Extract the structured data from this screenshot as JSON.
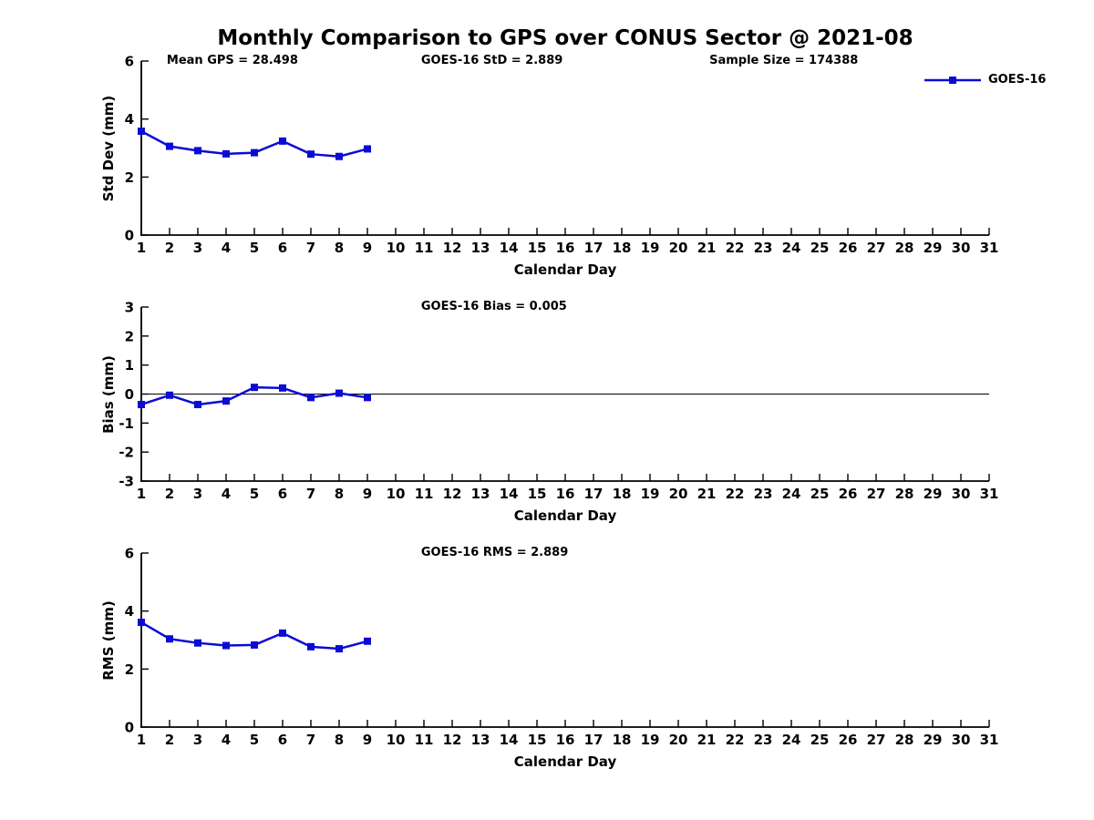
{
  "page_title": "Monthly Comparison to GPS over CONUS Sector @ 2021-08",
  "colors": {
    "series": "#0b0bd6",
    "axis": "#000000",
    "zero_line": "#000000",
    "text": "#000000",
    "background": "#ffffff"
  },
  "legend": {
    "label": "GOES-16"
  },
  "chart_data": [
    {
      "type": "line",
      "name": "std-dev-subplot",
      "annotations": [
        {
          "text": "Mean GPS = 28.498",
          "xfrac": 0.03
        },
        {
          "text": "GOES-16 StD = 2.889",
          "xfrac": 0.33
        },
        {
          "text": "Sample Size = 174388",
          "xfrac": 0.67
        }
      ],
      "xlabel": "Calendar Day",
      "ylabel": "Std Dev (mm)",
      "xlim": [
        1,
        31
      ],
      "ylim": [
        0,
        6
      ],
      "xticks": [
        1,
        2,
        3,
        4,
        5,
        6,
        7,
        8,
        9,
        10,
        11,
        12,
        13,
        14,
        15,
        16,
        17,
        18,
        19,
        20,
        21,
        22,
        23,
        24,
        25,
        26,
        27,
        28,
        29,
        30,
        31
      ],
      "yticks": [
        0,
        2,
        4,
        6
      ],
      "zero_line": false,
      "grid": false,
      "legend_position": "top-right-outside",
      "series": [
        {
          "name": "GOES-16",
          "x": [
            1,
            2,
            3,
            4,
            5,
            6,
            7,
            8,
            9
          ],
          "values": [
            3.58,
            3.06,
            2.91,
            2.8,
            2.84,
            3.24,
            2.79,
            2.71,
            2.97
          ]
        }
      ]
    },
    {
      "type": "line",
      "name": "bias-subplot",
      "annotations": [
        {
          "text": "GOES-16 Bias = 0.005",
          "xfrac": 0.33
        }
      ],
      "xlabel": "Calendar Day",
      "ylabel": "Bias (mm)",
      "xlim": [
        1,
        31
      ],
      "ylim": [
        -3,
        3
      ],
      "xticks": [
        1,
        2,
        3,
        4,
        5,
        6,
        7,
        8,
        9,
        10,
        11,
        12,
        13,
        14,
        15,
        16,
        17,
        18,
        19,
        20,
        21,
        22,
        23,
        24,
        25,
        26,
        27,
        28,
        29,
        30,
        31
      ],
      "yticks": [
        3,
        2,
        1,
        0,
        -1,
        -2,
        -3
      ],
      "zero_line": true,
      "grid": false,
      "series": [
        {
          "name": "GOES-16",
          "x": [
            1,
            2,
            3,
            4,
            5,
            6,
            7,
            8,
            9
          ],
          "values": [
            -0.36,
            -0.04,
            -0.36,
            -0.24,
            0.23,
            0.21,
            -0.12,
            0.03,
            -0.12
          ]
        }
      ]
    },
    {
      "type": "line",
      "name": "rms-subplot",
      "annotations": [
        {
          "text": "GOES-16 RMS = 2.889",
          "xfrac": 0.33
        }
      ],
      "xlabel": "Calendar Day",
      "ylabel": "RMS (mm)",
      "xlim": [
        1,
        31
      ],
      "ylim": [
        0,
        6
      ],
      "xticks": [
        1,
        2,
        3,
        4,
        5,
        6,
        7,
        8,
        9,
        10,
        11,
        12,
        13,
        14,
        15,
        16,
        17,
        18,
        19,
        20,
        21,
        22,
        23,
        24,
        25,
        26,
        27,
        28,
        29,
        30,
        31
      ],
      "yticks": [
        0,
        2,
        4,
        6
      ],
      "zero_line": false,
      "grid": false,
      "series": [
        {
          "name": "GOES-16",
          "x": [
            1,
            2,
            3,
            4,
            5,
            6,
            7,
            8,
            9
          ],
          "values": [
            3.61,
            3.04,
            2.9,
            2.81,
            2.83,
            3.24,
            2.77,
            2.7,
            2.96
          ]
        }
      ]
    }
  ]
}
